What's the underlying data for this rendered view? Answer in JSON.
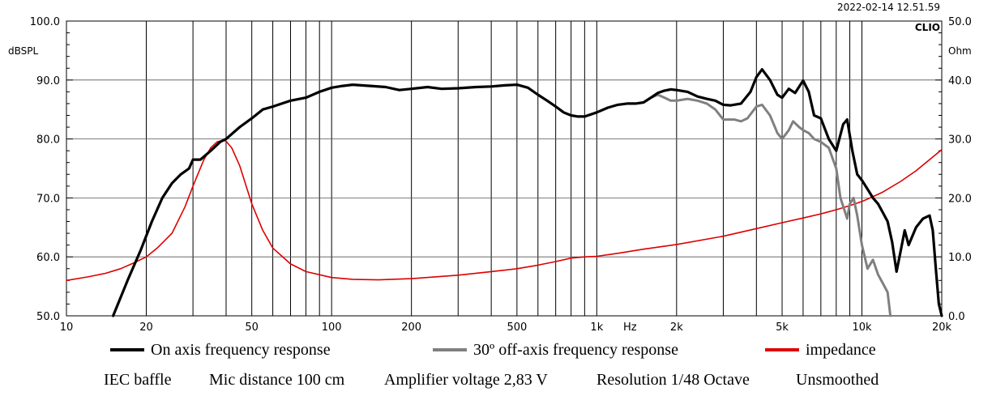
{
  "chart_data": {
    "type": "line",
    "software": "CLIO",
    "timestamp": "2022-02-14 12.51.59",
    "x_axis": {
      "scale": "log",
      "range": [
        10,
        20000
      ],
      "unit_label": "Hz",
      "ticks": [
        {
          "value": 10,
          "label": "10"
        },
        {
          "value": 20,
          "label": "20"
        },
        {
          "value": 50,
          "label": "50"
        },
        {
          "value": 100,
          "label": "100"
        },
        {
          "value": 200,
          "label": "200"
        },
        {
          "value": 500,
          "label": "500"
        },
        {
          "value": 1000,
          "label": "1k"
        },
        {
          "value": 2000,
          "label": "2k"
        },
        {
          "value": 5000,
          "label": "5k"
        },
        {
          "value": 10000,
          "label": "10k"
        },
        {
          "value": 20000,
          "label": "20k"
        }
      ]
    },
    "y_left": {
      "label": "dBSPL",
      "range": [
        50,
        100
      ],
      "ticks": [
        "50.0",
        "60.0",
        "70.0",
        "80.0",
        "90.0",
        "100.0"
      ]
    },
    "y_right": {
      "label": "Ohm",
      "range": [
        0,
        50
      ],
      "ticks": [
        "0.0",
        "10.0",
        "20.0",
        "30.0",
        "40.0",
        "50.0"
      ]
    },
    "series": [
      {
        "name": "On axis frequency response",
        "axis": "left",
        "color": "#000000",
        "x": [
          15,
          17,
          19,
          21,
          23,
          25,
          27,
          29,
          30,
          32,
          35,
          38,
          40,
          45,
          50,
          55,
          60,
          70,
          80,
          90,
          100,
          110,
          120,
          140,
          160,
          180,
          200,
          230,
          260,
          300,
          350,
          400,
          450,
          500,
          550,
          600,
          650,
          700,
          750,
          800,
          850,
          900,
          1000,
          1100,
          1200,
          1300,
          1400,
          1500,
          1600,
          1700,
          1800,
          1900,
          2000,
          2200,
          2400,
          2600,
          2800,
          3000,
          3200,
          3500,
          3800,
          4000,
          4200,
          4500,
          4800,
          5000,
          5300,
          5600,
          6000,
          6300,
          6600,
          7000,
          7500,
          8000,
          8500,
          8800,
          9200,
          9600,
          10000,
          10500,
          11000,
          11500,
          12000,
          12500,
          13000,
          13500,
          14000,
          14500,
          15000,
          16000,
          17000,
          18000,
          18500,
          19000,
          19500,
          20000
        ],
        "y": [
          50.0,
          56.0,
          61.0,
          66.0,
          70.0,
          72.5,
          74.0,
          75.0,
          76.5,
          76.5,
          78.0,
          79.5,
          80.0,
          82.0,
          83.5,
          85.0,
          85.5,
          86.5,
          87.0,
          88.0,
          88.7,
          89.0,
          89.2,
          89.0,
          88.8,
          88.3,
          88.5,
          88.8,
          88.5,
          88.6,
          88.8,
          88.9,
          89.1,
          89.2,
          88.7,
          87.5,
          86.5,
          85.5,
          84.5,
          84.0,
          83.8,
          83.8,
          84.5,
          85.3,
          85.8,
          86.0,
          86.0,
          86.2,
          87.0,
          87.8,
          88.2,
          88.4,
          88.3,
          88.0,
          87.2,
          86.8,
          86.5,
          85.8,
          85.7,
          86.0,
          88.0,
          90.5,
          91.8,
          90.0,
          87.5,
          87.0,
          88.5,
          87.8,
          89.9,
          88.0,
          84.0,
          83.5,
          80.0,
          78.0,
          82.5,
          83.3,
          78.0,
          74.0,
          73.0,
          71.5,
          70.0,
          69.0,
          67.5,
          66.0,
          62.5,
          57.5,
          61.0,
          64.5,
          62.0,
          65.0,
          66.5,
          67.0,
          64.5,
          58.0,
          52.0,
          50.0
        ]
      },
      {
        "name": "30º off-axis frequency response",
        "axis": "left",
        "color": "#808080",
        "x": [
          1600,
          1700,
          1800,
          1900,
          2000,
          2200,
          2400,
          2600,
          2800,
          3000,
          3300,
          3500,
          3700,
          4000,
          4200,
          4500,
          4800,
          5000,
          5300,
          5500,
          5800,
          6000,
          6300,
          6600,
          7000,
          7500,
          8000,
          8300,
          8800,
          9000,
          9300,
          9600,
          10000,
          10500,
          11000,
          11500,
          12000,
          12500,
          12800
        ],
        "y": [
          87.0,
          87.5,
          87.0,
          86.5,
          86.5,
          86.8,
          86.5,
          86.0,
          85.0,
          83.3,
          83.3,
          83.0,
          83.5,
          85.5,
          85.8,
          84.0,
          81.0,
          80.0,
          81.5,
          83.0,
          82.0,
          81.5,
          81.0,
          80.0,
          79.5,
          78.5,
          75.0,
          70.0,
          66.5,
          69.0,
          70.0,
          67.0,
          62.0,
          58.0,
          59.5,
          57.0,
          55.5,
          54.0,
          50.0
        ]
      },
      {
        "name": "impedance",
        "axis": "right",
        "color": "#dd0000",
        "x": [
          10,
          12,
          14,
          16,
          18,
          20,
          22,
          25,
          28,
          30,
          33,
          35,
          37,
          39,
          40,
          42,
          45,
          48,
          50,
          55,
          60,
          70,
          80,
          100,
          120,
          150,
          200,
          300,
          400,
          500,
          600,
          700,
          800,
          900,
          1000,
          1200,
          1500,
          2000,
          3000,
          4000,
          5000,
          6000,
          7000,
          8000,
          9000,
          10000,
          11000,
          12000,
          14000,
          16000,
          18000,
          20000
        ],
        "y": [
          6.0,
          6.6,
          7.2,
          8.0,
          9.0,
          10.0,
          11.5,
          14.0,
          18.5,
          22.0,
          26.5,
          28.5,
          29.5,
          29.8,
          29.6,
          28.5,
          25.5,
          21.5,
          19.0,
          14.5,
          11.5,
          8.8,
          7.5,
          6.5,
          6.2,
          6.1,
          6.3,
          6.9,
          7.5,
          8.0,
          8.6,
          9.2,
          9.8,
          10.0,
          10.1,
          10.6,
          11.3,
          12.1,
          13.5,
          14.8,
          15.8,
          16.6,
          17.3,
          18.0,
          18.7,
          19.4,
          20.2,
          21.0,
          22.8,
          24.6,
          26.5,
          28.2
        ]
      }
    ]
  },
  "legend": [
    {
      "label": "On axis frequency response",
      "color": "#000000"
    },
    {
      "label": "30º off-axis frequency response",
      "color": "#808080"
    },
    {
      "label": "impedance",
      "color": "#dd0000"
    }
  ],
  "info": [
    "IEC baffle",
    "Mic distance 100 cm",
    "Amplifier voltage 2,83 V",
    "Resolution 1/48 Octave",
    "Unsmoothed"
  ]
}
